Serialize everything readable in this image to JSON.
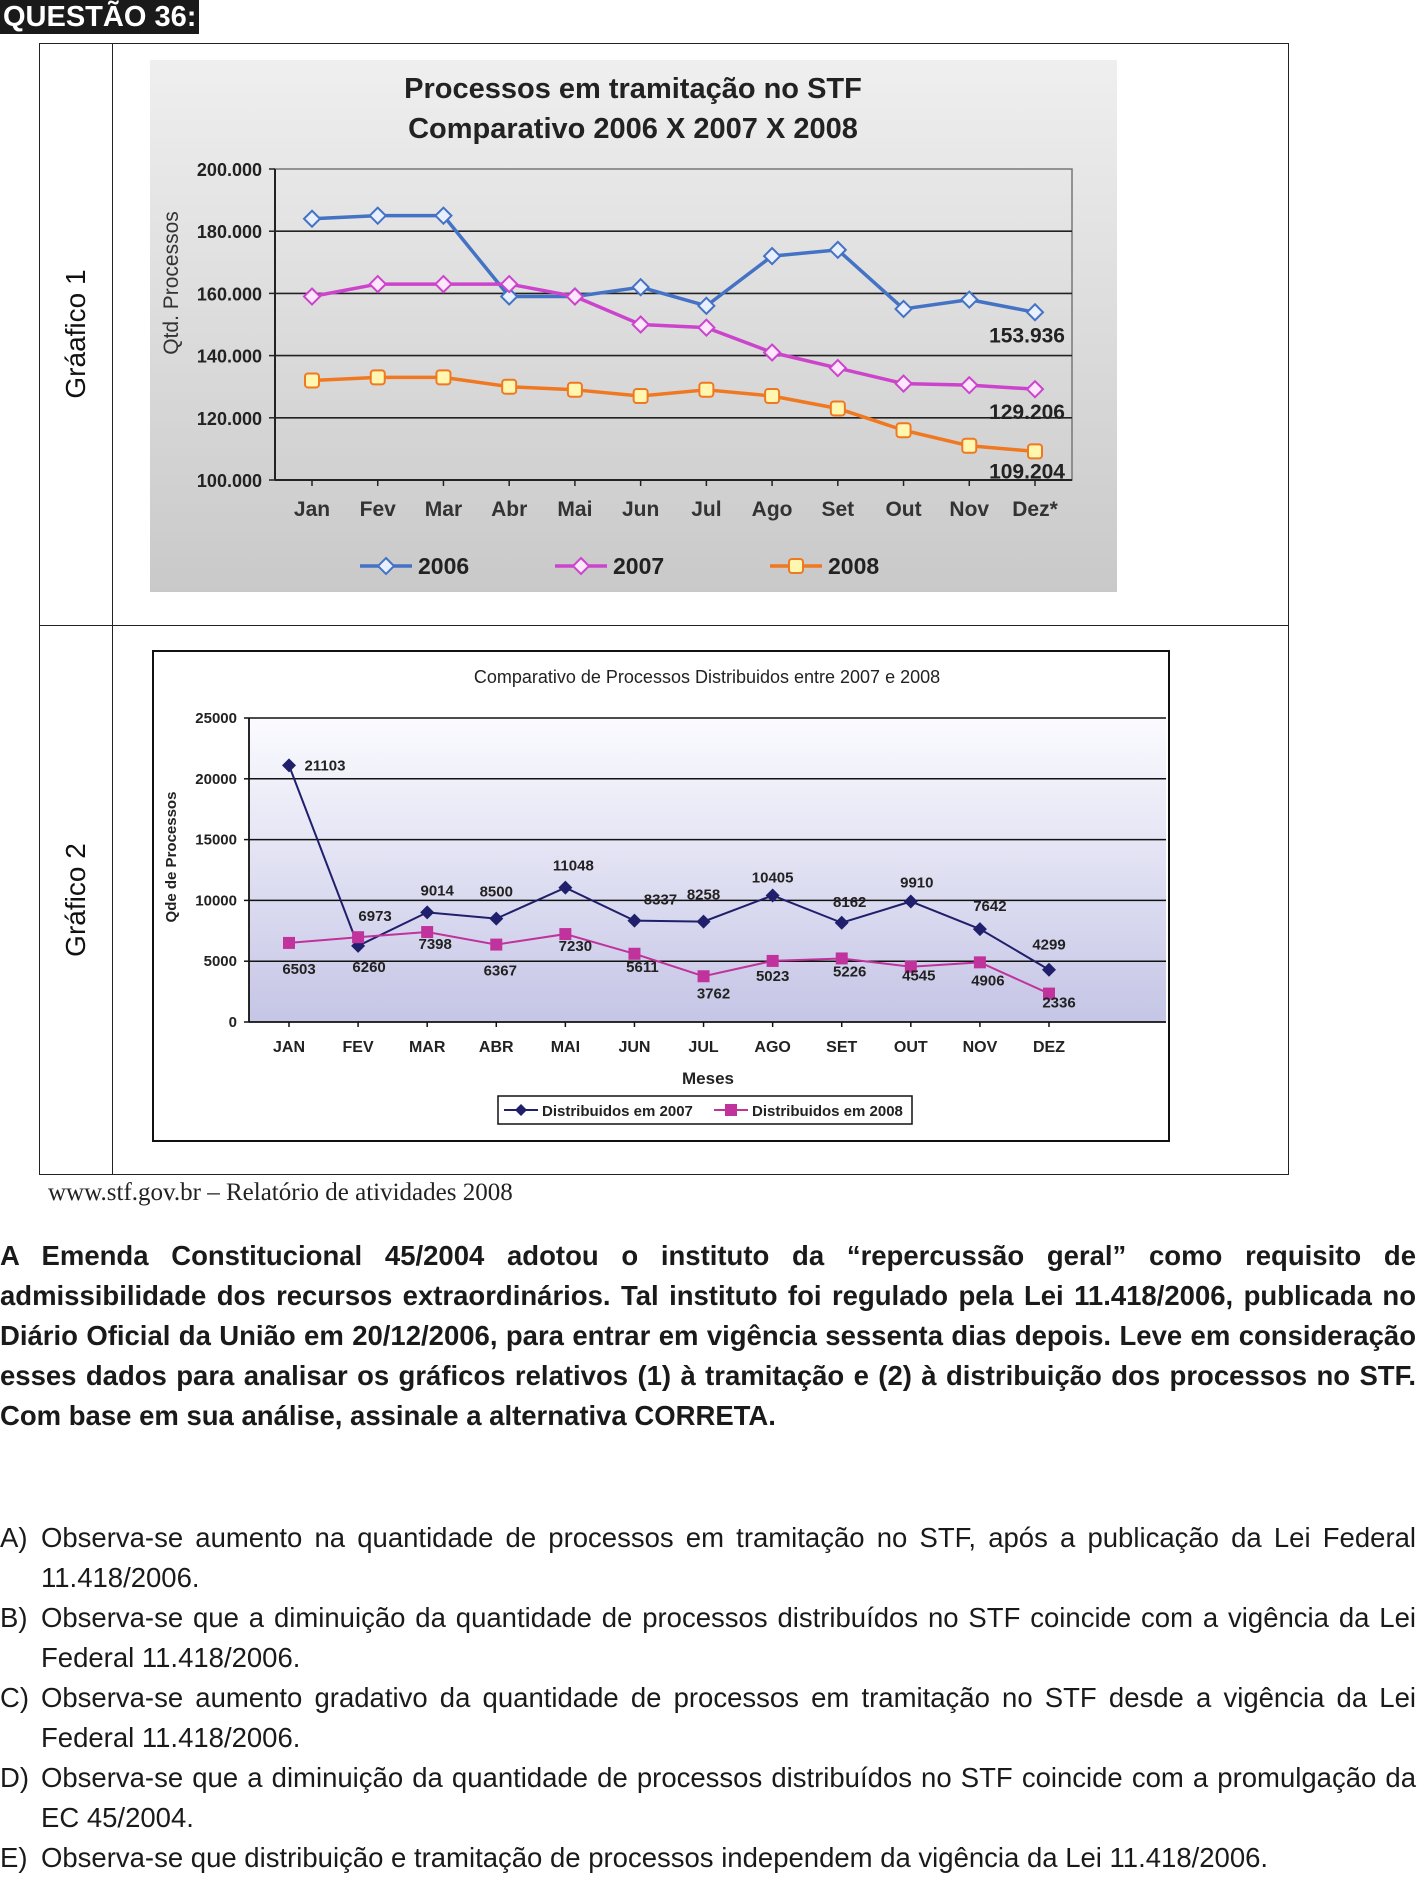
{
  "question_label": "QUESTÃO 36:",
  "rows": [
    {
      "label": "Gráafico 1"
    },
    {
      "label": "Gráfico 2"
    }
  ],
  "chart_data": [
    {
      "type": "line",
      "title": "Processos em tramitação no STF",
      "subtitle": "Comparativo 2006 X 2007 X 2008",
      "ylabel": "Qtd. Processos",
      "xlabel": "",
      "ylim": [
        100000,
        200000
      ],
      "ytick_labels": [
        "100.000",
        "120.000",
        "140.000",
        "160.000",
        "180.000",
        "200.000"
      ],
      "categories": [
        "Jan",
        "Fev",
        "Mar",
        "Abr",
        "Mai",
        "Jun",
        "Jul",
        "Ago",
        "Set",
        "Out",
        "Nov",
        "Dez*"
      ],
      "series": [
        {
          "name": "2006",
          "color": "#4472c4",
          "values": [
            184000,
            185000,
            185000,
            159000,
            159000,
            162000,
            156000,
            172000,
            174000,
            155000,
            158000,
            153936
          ]
        },
        {
          "name": "2007",
          "color": "#cc44cc",
          "values": [
            159000,
            163000,
            163000,
            163000,
            159000,
            150000,
            149000,
            141000,
            136000,
            131000,
            130500,
            129206
          ]
        },
        {
          "name": "2008",
          "color": "#f07820",
          "values": [
            132000,
            133000,
            133000,
            130000,
            129000,
            127000,
            129000,
            127000,
            123000,
            116000,
            111000,
            109204
          ]
        }
      ],
      "annotations": [
        "153.936",
        "129.206",
        "109.204"
      ],
      "legend": "bottom",
      "grid": true
    },
    {
      "type": "line",
      "title": "Comparativo de Processos Distribuidos entre 2007 e 2008",
      "xlabel": "Meses",
      "ylabel": "Qde de Processos",
      "ylim": [
        0,
        25000
      ],
      "ytick_labels": [
        "0",
        "5000",
        "10000",
        "15000",
        "20000",
        "25000"
      ],
      "categories": [
        "JAN",
        "FEV",
        "MAR",
        "ABR",
        "MAI",
        "JUN",
        "JUL",
        "AGO",
        "SET",
        "OUT",
        "NOV",
        "DEZ"
      ],
      "series": [
        {
          "name": "Distribuidos em 2007",
          "color": "#1f1f6b",
          "values": [
            21103,
            6260,
            9014,
            8500,
            11048,
            8337,
            8258,
            10405,
            8162,
            9910,
            7642,
            4299
          ]
        },
        {
          "name": "Distribuidos em 2008",
          "color": "#c0329c",
          "values": [
            6503,
            6973,
            7398,
            6367,
            7230,
            5611,
            3762,
            5023,
            5226,
            4545,
            4906,
            2336
          ]
        }
      ],
      "legend": "bottom",
      "grid": true
    }
  ],
  "source": "www.stf.gov.br – Relatório de atividades 2008",
  "stem": "A Emenda Constitucional 45/2004 adotou o instituto da “repercussão geral” como requisito de admissibilidade dos recursos extraordinários. Tal instituto foi regulado pela Lei 11.418/2006, publicada no Diário Oficial da União em 20/12/2006, para entrar em vigência sessenta dias depois. Leve em consideração esses dados para analisar os gráficos relativos (1) à tramitação e (2) à distribuição dos processos no STF. Com base em sua análise, assinale a alternativa CORRETA.",
  "options": [
    {
      "letter": "A)",
      "text": "Observa-se aumento na quantidade de processos em tramitação no STF, após a publicação da Lei Federal 11.418/2006."
    },
    {
      "letter": "B)",
      "text": "Observa-se que a diminuição da quantidade de processos distribuídos no STF coincide com a vigência da Lei Federal 11.418/2006."
    },
    {
      "letter": "C)",
      "text": "Observa-se aumento gradativo da quantidade de processos em tramitação no STF desde a vigência da Lei Federal 11.418/2006."
    },
    {
      "letter": "D)",
      "text": "Observa-se que a diminuição da quantidade de processos distribuídos no STF coincide com a promulgação da EC 45/2004."
    },
    {
      "letter": "E)",
      "text": "Observa-se que distribuição e tramitação de processos independem da vigência da Lei 11.418/2006."
    }
  ]
}
